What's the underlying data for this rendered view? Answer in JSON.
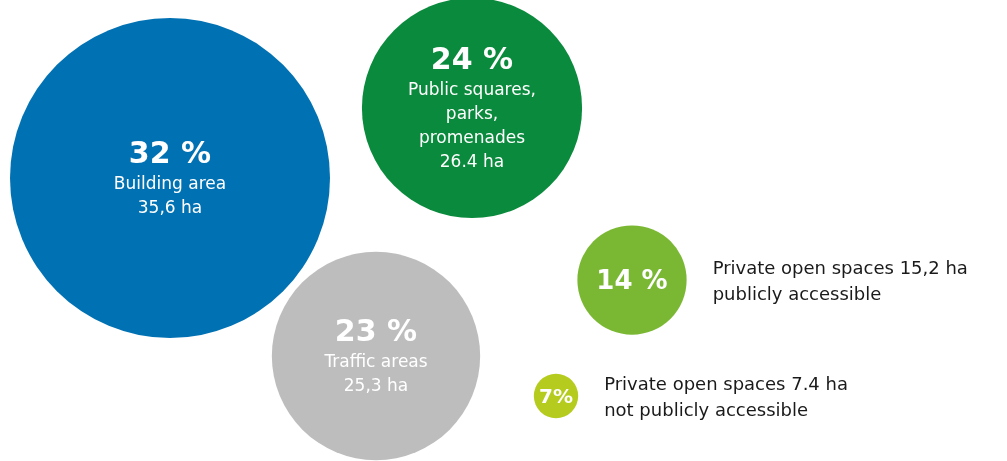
{
  "chart_data": {
    "type": "other",
    "categories": [
      "Building area\n35,6 ha",
      "Public squares,\nparks,\npromenades\n26.4 ha",
      "Private open spaces 15,2 ha\npublicly accessible",
      "Traffic areas\n25,3 ha",
      "Private open spaces 7.4 ha\nnot publicly accessible"
    ],
    "values": [
      32,
      24,
      14,
      23,
      7
    ],
    "value_labels": [
      "32 %",
      "24 %",
      "14 %",
      "23 %",
      "7%"
    ],
    "colors": [
      "#0071b3",
      "#0a8a3c",
      "#7ab833",
      "#bdbdbd",
      "#b5cc1f"
    ]
  }
}
